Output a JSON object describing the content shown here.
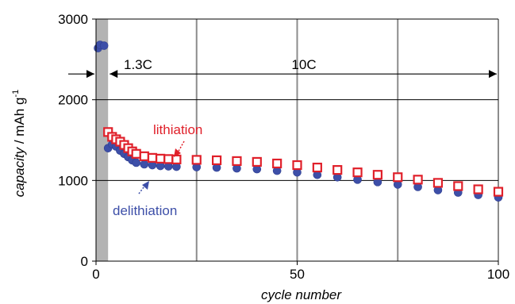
{
  "chart_data": {
    "type": "scatter",
    "xlabel": "cycle number",
    "ylabel_italic": "capacity",
    "ylabel_rest": " / mAh g",
    "ylabel_sup": "-1",
    "xlim": [
      0,
      100
    ],
    "ylim": [
      0,
      3000
    ],
    "x_ticks": [
      0,
      50,
      100
    ],
    "y_ticks": [
      0,
      1000,
      2000,
      3000
    ],
    "x_tick_labels": [
      "0",
      "50",
      "100"
    ],
    "y_tick_labels": [
      "0",
      "1000",
      "2000",
      "3000"
    ],
    "gridlines_x": [
      25,
      50,
      75,
      100
    ],
    "gridlines_y": [
      1000,
      2000,
      3000
    ],
    "shaded_region_x": [
      0,
      3
    ],
    "rate_annotations": [
      {
        "label": "1.3C",
        "x_start": 0,
        "x_end": 3,
        "y": 2300
      },
      {
        "label": "10C",
        "x_start": 3,
        "x_end": 100,
        "y": 2300
      }
    ],
    "series": [
      {
        "name": "lithiation",
        "color": "#e0202a",
        "marker": "open-square",
        "points": [
          [
            3,
            1600
          ],
          [
            4,
            1540
          ],
          [
            5,
            1510
          ],
          [
            6,
            1480
          ],
          [
            7,
            1440
          ],
          [
            8,
            1400
          ],
          [
            9,
            1360
          ],
          [
            10,
            1330
          ],
          [
            12,
            1300
          ],
          [
            14,
            1280
          ],
          [
            16,
            1270
          ],
          [
            18,
            1265
          ],
          [
            20,
            1260
          ],
          [
            25,
            1255
          ],
          [
            30,
            1250
          ],
          [
            35,
            1240
          ],
          [
            40,
            1230
          ],
          [
            45,
            1210
          ],
          [
            50,
            1190
          ],
          [
            55,
            1160
          ],
          [
            60,
            1130
          ],
          [
            65,
            1100
          ],
          [
            70,
            1070
          ],
          [
            75,
            1040
          ],
          [
            80,
            1010
          ],
          [
            85,
            970
          ],
          [
            90,
            930
          ],
          [
            95,
            890
          ],
          [
            100,
            860
          ]
        ]
      },
      {
        "name": "delithiation",
        "color": "#3d4fa8",
        "marker": "filled-circle",
        "points": [
          [
            0.5,
            2640
          ],
          [
            1,
            2680
          ],
          [
            2,
            2670
          ],
          [
            3,
            1400
          ],
          [
            4,
            1450
          ],
          [
            5,
            1420
          ],
          [
            6,
            1370
          ],
          [
            7,
            1330
          ],
          [
            8,
            1290
          ],
          [
            9,
            1250
          ],
          [
            10,
            1220
          ],
          [
            12,
            1200
          ],
          [
            14,
            1190
          ],
          [
            16,
            1180
          ],
          [
            18,
            1175
          ],
          [
            20,
            1170
          ],
          [
            25,
            1165
          ],
          [
            30,
            1160
          ],
          [
            35,
            1150
          ],
          [
            40,
            1140
          ],
          [
            45,
            1120
          ],
          [
            50,
            1100
          ],
          [
            55,
            1070
          ],
          [
            60,
            1040
          ],
          [
            65,
            1010
          ],
          [
            70,
            980
          ],
          [
            75,
            950
          ],
          [
            80,
            920
          ],
          [
            85,
            880
          ],
          [
            90,
            850
          ],
          [
            95,
            820
          ],
          [
            100,
            790
          ]
        ]
      }
    ],
    "annotations": [
      {
        "text": "lithiation",
        "color": "#e0202a"
      },
      {
        "text": "delithiation",
        "color": "#3d4fa8"
      }
    ]
  }
}
